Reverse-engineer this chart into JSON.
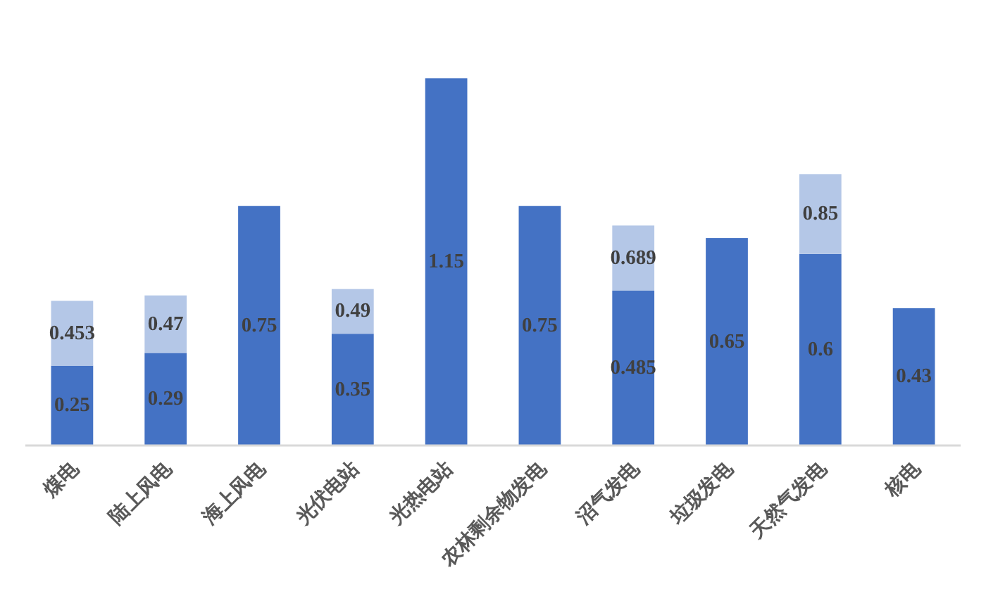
{
  "chart_data": {
    "type": "bar",
    "stacked": true,
    "categories": [
      "煤电",
      "陆上风电",
      "海上风电",
      "光伏电站",
      "光热电站",
      "农林剩余物发电",
      "沼气发电",
      "垃圾发电",
      "天然气发电",
      "核电"
    ],
    "series": [
      {
        "color": "#4472c4",
        "values": [
          0.25,
          0.29,
          0.75,
          0.35,
          1.15,
          0.75,
          0.485,
          0.65,
          0.6,
          0.43
        ],
        "value_labels": [
          "0.25",
          "0.29",
          "0.75",
          "0.35",
          "1.15",
          "0.75",
          "0.485",
          "0.65",
          "0.6",
          "0.43"
        ]
      },
      {
        "color": "#b4c7e7",
        "values": [
          0.203,
          0.18,
          null,
          0.14,
          null,
          null,
          0.204,
          null,
          0.25,
          null
        ]
      }
    ],
    "totals": [
      "0.453",
      "0.47",
      null,
      "0.49",
      null,
      null,
      "0.689",
      null,
      "0.85",
      null
    ]
  }
}
